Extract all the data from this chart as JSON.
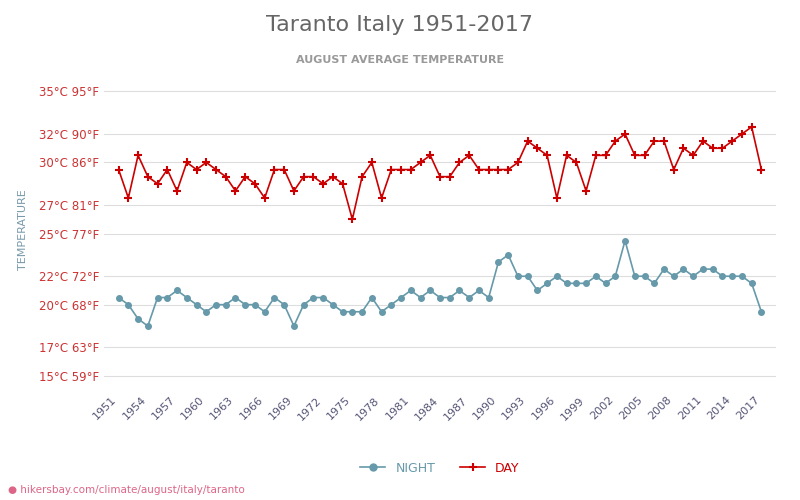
{
  "title": "Taranto Italy 1951-2017",
  "subtitle": "AUGUST AVERAGE TEMPERATURE",
  "ylabel": "TEMPERATURE",
  "url": "hikersbay.com/climate/august/italy/taranto",
  "years": [
    1951,
    1952,
    1953,
    1954,
    1955,
    1956,
    1957,
    1958,
    1959,
    1960,
    1961,
    1962,
    1963,
    1964,
    1965,
    1966,
    1967,
    1968,
    1969,
    1970,
    1971,
    1972,
    1973,
    1974,
    1975,
    1976,
    1977,
    1978,
    1979,
    1980,
    1981,
    1982,
    1983,
    1984,
    1985,
    1986,
    1987,
    1988,
    1989,
    1990,
    1991,
    1992,
    1993,
    1994,
    1995,
    1996,
    1997,
    1998,
    1999,
    2000,
    2001,
    2002,
    2003,
    2004,
    2005,
    2006,
    2007,
    2008,
    2009,
    2010,
    2011,
    2012,
    2013,
    2014,
    2015,
    2016,
    2017
  ],
  "day_temps": [
    29.5,
    27.5,
    30.5,
    29.0,
    28.5,
    29.5,
    28.0,
    30.0,
    29.5,
    30.0,
    29.5,
    29.0,
    28.0,
    29.0,
    28.5,
    27.5,
    29.5,
    29.5,
    28.0,
    29.0,
    29.0,
    28.5,
    29.0,
    28.5,
    26.0,
    29.0,
    30.0,
    27.5,
    29.5,
    29.5,
    29.5,
    30.0,
    30.5,
    29.0,
    29.0,
    30.0,
    30.5,
    29.5,
    29.5,
    29.5,
    29.5,
    30.0,
    31.5,
    31.0,
    30.5,
    27.5,
    30.5,
    30.0,
    28.0,
    30.5,
    30.5,
    31.5,
    32.0,
    30.5,
    30.5,
    31.5,
    31.5,
    29.5,
    31.0,
    30.5,
    31.5,
    31.0,
    31.0,
    31.5,
    32.0,
    32.5,
    29.5
  ],
  "night_temps": [
    20.5,
    20.0,
    19.0,
    18.5,
    20.5,
    20.5,
    21.0,
    20.5,
    20.0,
    19.5,
    20.0,
    20.0,
    20.5,
    20.0,
    20.0,
    19.5,
    20.5,
    20.0,
    18.5,
    20.0,
    20.5,
    20.5,
    20.0,
    19.5,
    19.5,
    19.5,
    20.5,
    19.5,
    20.0,
    20.5,
    21.0,
    20.5,
    21.0,
    20.5,
    20.5,
    21.0,
    20.5,
    21.0,
    20.5,
    23.0,
    23.5,
    22.0,
    22.0,
    21.0,
    21.5,
    22.0,
    21.5,
    21.5,
    21.5,
    22.0,
    21.5,
    22.0,
    24.5,
    22.0,
    22.0,
    21.5,
    22.5,
    22.0,
    22.5,
    22.0,
    22.5,
    22.5,
    22.0,
    22.0,
    22.0,
    21.5,
    19.5
  ],
  "day_color": "#cc0000",
  "night_color": "#6699aa",
  "bg_color": "#ffffff",
  "grid_color": "#dddddd",
  "title_color": "#666666",
  "subtitle_color": "#999999",
  "tick_label_color": "#cc3333",
  "yticks_celsius": [
    15,
    17,
    20,
    22,
    25,
    27,
    30,
    32,
    35
  ],
  "yticks_fahrenheit": [
    59,
    63,
    68,
    72,
    77,
    81,
    86,
    90,
    95
  ],
  "ymin": 14,
  "ymax": 36.5
}
